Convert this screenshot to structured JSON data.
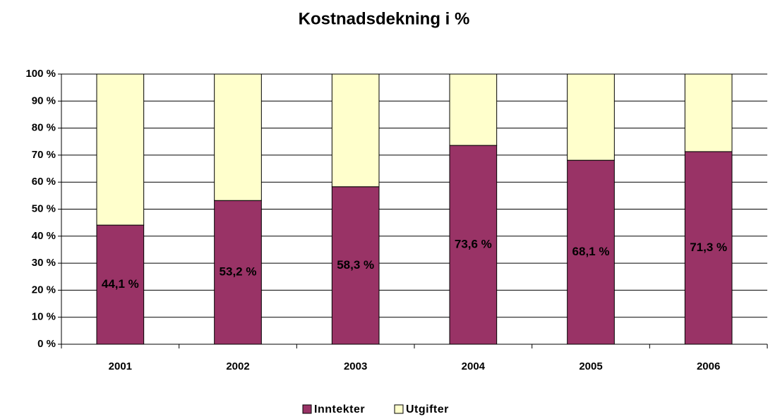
{
  "chart_data": {
    "type": "stacked_bar",
    "title": "Kostnadsdekning i %",
    "categories": [
      "2001",
      "2002",
      "2003",
      "2004",
      "2005",
      "2006"
    ],
    "series": [
      {
        "name": "Inntekter",
        "color": "#993366",
        "values": [
          44.1,
          53.2,
          58.3,
          73.6,
          68.1,
          71.3
        ],
        "value_labels": [
          "44,1 %",
          "53,2 %",
          "58,3 %",
          "73,6 %",
          "68,1 %",
          "71,3 %"
        ]
      },
      {
        "name": "Utgifter",
        "color": "#ffffcc",
        "values": [
          55.9,
          46.8,
          41.7,
          26.4,
          31.9,
          28.7
        ]
      }
    ],
    "ylim": [
      0,
      100
    ],
    "yticks": [
      {
        "value": 0,
        "label": "0 %"
      },
      {
        "value": 10,
        "label": "10 %"
      },
      {
        "value": 20,
        "label": "20 %"
      },
      {
        "value": 30,
        "label": "30 %"
      },
      {
        "value": 40,
        "label": "40 %"
      },
      {
        "value": 50,
        "label": "50 %"
      },
      {
        "value": 60,
        "label": "60 %"
      },
      {
        "value": 70,
        "label": "70 %"
      },
      {
        "value": 80,
        "label": "80 %"
      },
      {
        "value": 90,
        "label": "90 %"
      },
      {
        "value": 100,
        "label": "100 %"
      }
    ],
    "grid": true,
    "legend": "bottom"
  }
}
